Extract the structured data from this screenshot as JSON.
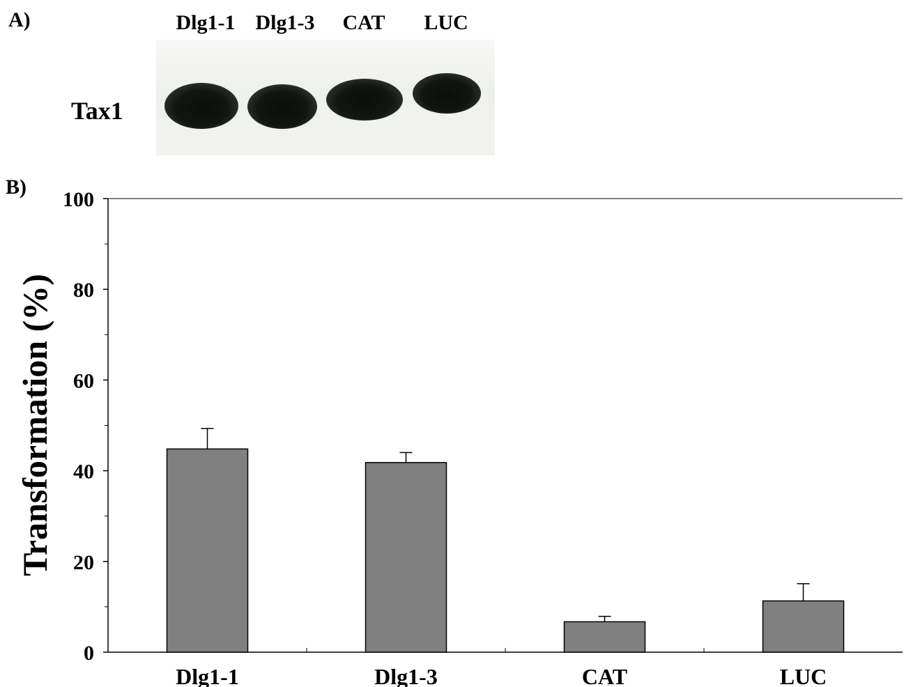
{
  "panel_a": {
    "label": "A)",
    "lanes": [
      "Dlg1-1",
      "Dlg1-3",
      "CAT",
      "LUC"
    ],
    "protein_label": "Tax1"
  },
  "panel_b": {
    "label": "B)"
  },
  "chart_data": {
    "type": "bar",
    "categories": [
      "Dlg1-1",
      "Dlg1-3",
      "CAT",
      "LUC"
    ],
    "values": [
      44.8,
      41.8,
      6.7,
      11.3
    ],
    "error": [
      4.5,
      2.2,
      1.2,
      3.8
    ],
    "ylabel": "Transformation (%)",
    "xlabel": "",
    "ylim": [
      0,
      100
    ],
    "yticks": [
      "0",
      "20",
      "40",
      "60",
      "80",
      "100"
    ],
    "grid": false,
    "colors": {
      "bar": "#808080",
      "edge": "#000000"
    }
  }
}
